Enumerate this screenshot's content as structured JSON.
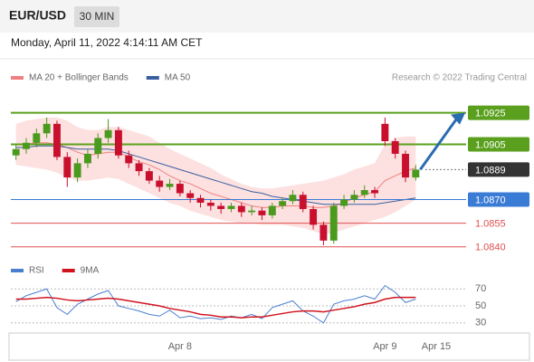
{
  "header": {
    "symbol": "EUR/USD",
    "timeframe": "30 MIN",
    "datetime": "Monday, April 11, 2022 4:14:11 AM CET"
  },
  "chart_data": [
    {
      "type": "candlestick",
      "note": "Research © 2022 Trading Central",
      "up_color": "#4a9a1e",
      "down_color": "#c8102e",
      "open": [
        1.0898,
        1.0902,
        1.0906,
        1.0912,
        1.0918,
        1.0897,
        1.0884,
        1.0893,
        1.0899,
        1.0909,
        1.0914,
        1.0898,
        1.0893,
        1.0888,
        1.0882,
        1.0878,
        1.088,
        1.0874,
        1.0871,
        1.0868,
        1.0866,
        1.0864,
        1.0866,
        1.0862,
        1.0863,
        1.086,
        1.0866,
        1.0869,
        1.0873,
        1.0864,
        1.0854,
        1.0844,
        1.0866,
        1.087,
        1.0873,
        1.0876,
        1.0918,
        1.0907,
        1.0899,
        1.0884,
        null,
        null,
        null,
        null,
        null,
        null
      ],
      "high": [
        1.0905,
        1.0909,
        1.0915,
        1.0922,
        1.092,
        1.09,
        1.0896,
        1.0902,
        1.0912,
        1.0921,
        1.0916,
        1.0901,
        1.0895,
        1.089,
        1.0885,
        1.0883,
        1.0882,
        1.0876,
        1.0873,
        1.087,
        1.0868,
        1.0868,
        1.0868,
        1.0866,
        1.0865,
        1.0868,
        1.0871,
        1.0876,
        1.0875,
        1.0866,
        1.0856,
        1.0868,
        1.0873,
        1.0876,
        1.0879,
        1.0878,
        1.0922,
        1.0909,
        1.0901,
        1.0892,
        null,
        null,
        null,
        null,
        null,
        null
      ],
      "low": [
        1.0895,
        1.0899,
        1.0903,
        1.0909,
        1.0895,
        1.0878,
        1.0881,
        1.089,
        1.0896,
        1.0906,
        1.0896,
        1.089,
        1.0885,
        1.088,
        1.0875,
        1.0876,
        1.0872,
        1.0868,
        1.0865,
        1.0863,
        1.0861,
        1.0862,
        1.0859,
        1.086,
        1.0857,
        1.0858,
        1.0864,
        1.0867,
        1.0862,
        1.0851,
        1.0841,
        1.0842,
        1.0864,
        1.0868,
        1.0871,
        1.0871,
        1.0904,
        1.0896,
        1.0881,
        1.0882,
        null,
        null,
        null,
        null,
        null,
        null
      ],
      "close": [
        1.0902,
        1.0906,
        1.0912,
        1.0918,
        1.0897,
        1.0884,
        1.0893,
        1.0899,
        1.0909,
        1.0914,
        1.0898,
        1.0893,
        1.0888,
        1.0882,
        1.0878,
        1.088,
        1.0874,
        1.0871,
        1.0868,
        1.0866,
        1.0864,
        1.0866,
        1.0862,
        1.0863,
        1.086,
        1.0866,
        1.0869,
        1.0873,
        1.0864,
        1.0854,
        1.0844,
        1.0866,
        1.087,
        1.0873,
        1.0876,
        1.0874,
        1.0907,
        1.0899,
        1.0884,
        1.0889,
        null,
        null,
        null,
        null,
        null,
        null
      ],
      "series": [
        {
          "name": "MA 20 + Bollinger Bands",
          "color": "#f08080",
          "band_color": "#fde0e0",
          "upper": [
            1.0918,
            1.092,
            1.0921,
            1.0922,
            1.0922,
            1.092,
            1.0916,
            1.0914,
            1.0914,
            1.0916,
            1.0916,
            1.0914,
            1.0912,
            1.091,
            1.0906,
            1.0902,
            1.0899,
            1.0896,
            1.0893,
            1.089,
            1.0886,
            1.0883,
            1.088,
            1.0878,
            1.0877,
            1.0877,
            1.0878,
            1.0879,
            1.088,
            1.0881,
            1.0882,
            1.0884,
            1.0886,
            1.0889,
            1.0891,
            1.0893,
            1.0905,
            1.0909,
            1.091,
            1.091,
            null,
            null,
            null,
            null,
            null,
            null
          ],
          "values": [
            1.0905,
            1.0905,
            1.0906,
            1.0906,
            1.0905,
            1.0903,
            1.09,
            1.0898,
            1.0899,
            1.09,
            1.09,
            1.0897,
            1.0894,
            1.0892,
            1.0889,
            1.0885,
            1.0882,
            1.088,
            1.0877,
            1.0874,
            1.0872,
            1.087,
            1.0868,
            1.0866,
            1.0865,
            1.0865,
            1.0866,
            1.0866,
            1.0866,
            1.0865,
            1.0865,
            1.0866,
            1.0868,
            1.0871,
            1.0873,
            1.0875,
            1.0882,
            1.0885,
            1.0888,
            1.089,
            null,
            null,
            null,
            null,
            null,
            null
          ],
          "lower": [
            1.0892,
            1.0891,
            1.089,
            1.0889,
            1.0887,
            1.0884,
            1.0882,
            1.0882,
            1.0883,
            1.0884,
            1.0883,
            1.088,
            1.0877,
            1.0874,
            1.0871,
            1.0868,
            1.0866,
            1.0863,
            1.0861,
            1.0859,
            1.0857,
            1.0856,
            1.0855,
            1.0855,
            1.0854,
            1.0854,
            1.0854,
            1.0853,
            1.0852,
            1.085,
            1.0848,
            1.0849,
            1.0851,
            1.0853,
            1.0855,
            1.0857,
            1.0859,
            1.0862,
            1.0866,
            1.087,
            null,
            null,
            null,
            null,
            null,
            null
          ]
        },
        {
          "name": "MA 50",
          "color": "#3a5f9f",
          "values": [
            1.0903,
            1.0903,
            1.0904,
            1.0904,
            1.0904,
            1.0903,
            1.0902,
            1.0902,
            1.0902,
            1.0902,
            1.0901,
            1.0899,
            1.0897,
            1.0895,
            1.0893,
            1.0891,
            1.0889,
            1.0887,
            1.0885,
            1.0883,
            1.0881,
            1.0879,
            1.0877,
            1.0875,
            1.0874,
            1.0872,
            1.0871,
            1.087,
            1.0869,
            1.0868,
            1.0867,
            1.0867,
            1.0867,
            1.0867,
            1.0867,
            1.0867,
            1.0868,
            1.0869,
            1.087,
            1.0871,
            null,
            null,
            null,
            null,
            null,
            null
          ]
        }
      ],
      "levels": [
        {
          "value": 1.0925,
          "label": "1.0925",
          "color": "#5aa01e",
          "line": "solid",
          "boxed": true
        },
        {
          "value": 1.0905,
          "label": "1.0905",
          "color": "#5aa01e",
          "line": "solid",
          "boxed": true
        },
        {
          "value": 1.0889,
          "label": "1.0889",
          "color": "#333333",
          "line": "dotted",
          "boxed": true
        },
        {
          "value": 1.087,
          "label": "1.0870",
          "color": "#3a7bd5",
          "line": "solid",
          "boxed": true
        },
        {
          "value": 1.0855,
          "label": "1.0855",
          "color": "#e05050",
          "line": "solid",
          "boxed": false
        },
        {
          "value": 1.084,
          "label": "1.0840",
          "color": "#e05050",
          "line": "solid",
          "boxed": false
        }
      ],
      "ylim": [
        1.0833,
        1.0942
      ]
    },
    {
      "type": "line",
      "categories": [
        null,
        null,
        null,
        null,
        null,
        null,
        null,
        null,
        null,
        null,
        null,
        null,
        null,
        null,
        null,
        null,
        "Apr 8",
        null,
        null,
        null,
        null,
        null,
        null,
        null,
        null,
        null,
        null,
        null,
        null,
        null,
        null,
        null,
        null,
        null,
        null,
        null,
        "Apr 9",
        null,
        null,
        null,
        null,
        "Apr 15",
        null,
        null,
        null,
        null
      ],
      "series": [
        {
          "name": "RSI",
          "color": "#4a7fd0",
          "values": [
            55,
            62,
            66,
            70,
            48,
            40,
            52,
            58,
            64,
            68,
            50,
            47,
            44,
            40,
            38,
            45,
            36,
            38,
            35,
            36,
            34,
            38,
            36,
            40,
            35,
            48,
            52,
            56,
            44,
            38,
            30,
            52,
            56,
            58,
            62,
            58,
            74,
            66,
            54,
            58,
            null,
            null,
            null,
            null,
            null,
            null
          ]
        },
        {
          "name": "9MA",
          "color": "#d0141e",
          "values": [
            58,
            58,
            59,
            60,
            59,
            57,
            56,
            57,
            58,
            59,
            58,
            56,
            54,
            52,
            50,
            47,
            45,
            43,
            40,
            39,
            37,
            37,
            36,
            37,
            37,
            39,
            41,
            43,
            44,
            44,
            43,
            45,
            47,
            49,
            52,
            54,
            58,
            60,
            60,
            60,
            null,
            null,
            null,
            null,
            null,
            null
          ]
        }
      ],
      "ylim": [
        18,
        82
      ],
      "yticks": [
        30,
        50,
        70
      ],
      "grid": true
    }
  ]
}
